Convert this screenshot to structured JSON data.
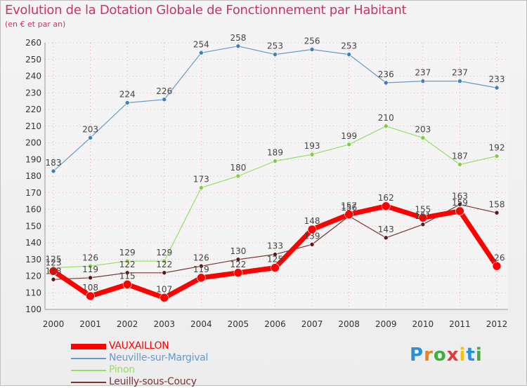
{
  "header": {
    "title": "Evolution de la Dotation Globale de Fonctionnement par Habitant",
    "subtitle": "(en € et par an)"
  },
  "logo": {
    "text": "Proxiti",
    "colors": [
      "#2b8fd4",
      "#f07f1a",
      "#3fae3f",
      "#e03a3a",
      "#f2c500",
      "#2b8fd4",
      "#3fae3f"
    ]
  },
  "colors": {
    "title": "#cc3366",
    "grid": "#cc3366"
  },
  "chart_data": {
    "type": "line",
    "title": "Evolution de la Dotation Globale de Fonctionnement par Habitant",
    "subtitle": "(en € et par an)",
    "x": [
      "2000",
      "2001",
      "2002",
      "2003",
      "2004",
      "2005",
      "2006",
      "2007",
      "2008",
      "2009",
      "2010",
      "2011",
      "2012"
    ],
    "ylim": [
      100,
      260
    ],
    "yticks": [
      100,
      110,
      120,
      130,
      140,
      150,
      160,
      170,
      180,
      190,
      200,
      210,
      220,
      230,
      240,
      250,
      260
    ],
    "grid": true,
    "legend_position": "bottom-left",
    "series": [
      {
        "name": "VAUXAILLON",
        "color": "#ff0000",
        "values": [
          123,
          108,
          115,
          107,
          119,
          122,
          125,
          148,
          157,
          162,
          155,
          159,
          126
        ]
      },
      {
        "name": "Neuville-sur-Margival",
        "color": "#6699cc",
        "values": [
          183,
          203,
          224,
          226,
          254,
          258,
          253,
          256,
          253,
          236,
          237,
          237,
          233
        ]
      },
      {
        "name": "Pinon",
        "color": "#99dd66",
        "values": [
          125,
          126,
          129,
          129,
          173,
          180,
          189,
          193,
          199,
          210,
          203,
          187,
          192
        ]
      },
      {
        "name": "Leuilly-sous-Coucy",
        "color": "#7a3333",
        "values": [
          118,
          119,
          122,
          122,
          126,
          130,
          133,
          139,
          156,
          143,
          151,
          163,
          158
        ]
      }
    ]
  }
}
